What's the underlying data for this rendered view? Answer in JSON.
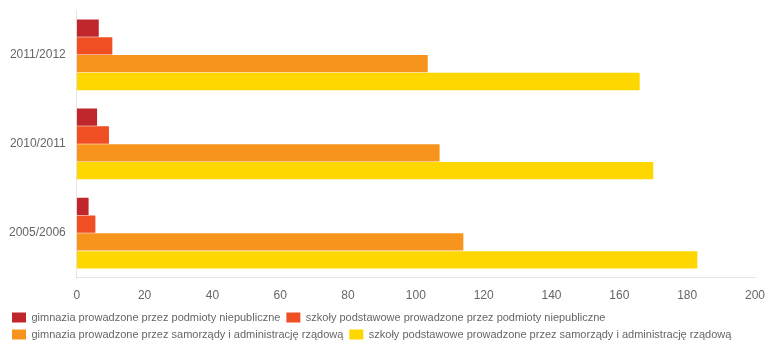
{
  "chart_data": {
    "type": "bar",
    "orientation": "horizontal",
    "categories": [
      "2005/2006",
      "2010/2011",
      "2011/2012"
    ],
    "series": [
      {
        "name": "gimnazia prowadzone przez podmioty niepubliczne",
        "color": "#c0272d",
        "values": [
          3.5,
          6.0,
          6.5
        ]
      },
      {
        "name": "szkoły podstawowe prowadzone przez podmioty niepubliczne",
        "color": "#f04e23",
        "values": [
          5.5,
          9.5,
          10.5
        ]
      },
      {
        "name": "gimnazia prowadzone przez samorządy i administrację rządową",
        "color": "#f7941d",
        "values": [
          114.0,
          107.0,
          103.5
        ]
      },
      {
        "name": "szkoły podstawowe prowadzone przez samorządy i administrację rządową",
        "color": "#ffd700",
        "values": [
          183.0,
          170.0,
          166.0
        ]
      }
    ],
    "xlim": [
      0,
      200
    ],
    "xticks": [
      0,
      20,
      40,
      60,
      80,
      100,
      120,
      140,
      160,
      180,
      200
    ],
    "grid": false,
    "legend": "bottom"
  }
}
